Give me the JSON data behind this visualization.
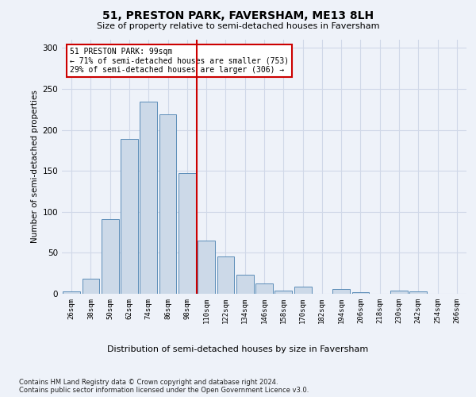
{
  "title": "51, PRESTON PARK, FAVERSHAM, ME13 8LH",
  "subtitle": "Size of property relative to semi-detached houses in Faversham",
  "xlabel": "Distribution of semi-detached houses by size in Faversham",
  "ylabel": "Number of semi-detached properties",
  "footer_line1": "Contains HM Land Registry data © Crown copyright and database right 2024.",
  "footer_line2": "Contains public sector information licensed under the Open Government Licence v3.0.",
  "bar_labels": [
    "26sqm",
    "38sqm",
    "50sqm",
    "62sqm",
    "74sqm",
    "86sqm",
    "98sqm",
    "110sqm",
    "122sqm",
    "134sqm",
    "146sqm",
    "158sqm",
    "170sqm",
    "182sqm",
    "194sqm",
    "206sqm",
    "218sqm",
    "230sqm",
    "242sqm",
    "254sqm",
    "266sqm"
  ],
  "bar_values": [
    3,
    18,
    91,
    189,
    234,
    219,
    147,
    65,
    46,
    23,
    13,
    4,
    9,
    0,
    6,
    2,
    0,
    4,
    3,
    0,
    0
  ],
  "bar_color": "#ccd9e8",
  "bar_edge_color": "#5b8db8",
  "property_line_label": "51 PRESTON PARK: 99sqm",
  "annotation_smaller": "← 71% of semi-detached houses are smaller (753)",
  "annotation_larger": "29% of semi-detached houses are larger (306) →",
  "annotation_box_color": "#ffffff",
  "annotation_box_edge": "#cc0000",
  "line_color": "#cc0000",
  "prop_line_index": 6.5,
  "ylim": [
    0,
    310
  ],
  "yticks": [
    0,
    50,
    100,
    150,
    200,
    250,
    300
  ],
  "grid_color": "#d0d8e8",
  "background_color": "#eef2f9",
  "figsize": [
    6.0,
    5.0
  ],
  "dpi": 100
}
